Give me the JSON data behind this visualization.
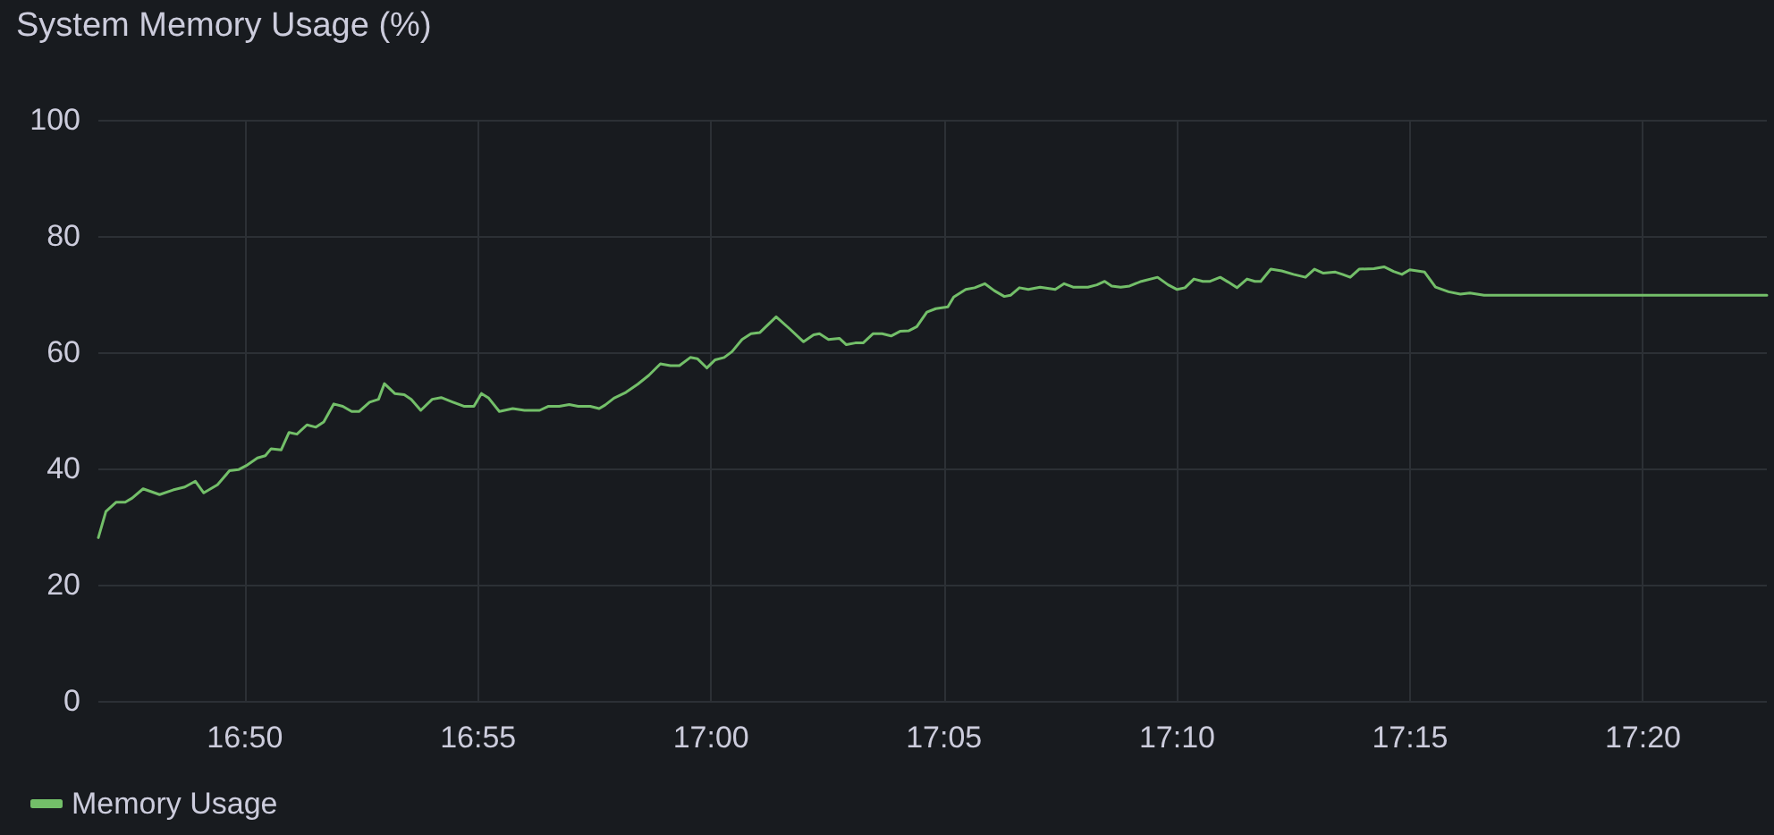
{
  "chart_data": {
    "type": "line",
    "title": "System Memory Usage (%)",
    "x": [
      16.7809,
      16.7836,
      16.7873,
      16.7905,
      16.793,
      16.7969,
      16.8028,
      16.8076,
      16.8118,
      16.8156,
      16.8186,
      16.8235,
      16.8278,
      16.831,
      16.8342,
      16.8378,
      16.8406,
      16.8427,
      16.8463,
      16.8491,
      16.8519,
      16.8555,
      16.8587,
      16.8615,
      16.8651,
      16.8683,
      16.8715,
      16.8741,
      16.8779,
      16.8811,
      16.8832,
      16.8869,
      16.8903,
      16.8928,
      16.8962,
      16.9003,
      16.9035,
      16.9077,
      16.9116,
      16.9152,
      16.9179,
      16.9205,
      16.9243,
      16.9291,
      16.9333,
      16.9387,
      16.9419,
      16.9457,
      16.9493,
      16.9525,
      16.9568,
      16.96,
      16.9621,
      16.9653,
      16.9696,
      16.9738,
      16.9777,
      16.9819,
      16.9855,
      16.9887,
      16.9926,
      16.9951,
      16.9985,
      17.0015,
      17.0047,
      17.0075,
      17.0111,
      17.0143,
      17.0175,
      17.0233,
      17.0282,
      17.0331,
      17.0367,
      17.0388,
      17.042,
      17.0459,
      17.0484,
      17.0516,
      17.0544,
      17.058,
      17.0612,
      17.0644,
      17.0676,
      17.0708,
      17.0736,
      17.0772,
      17.0804,
      17.0847,
      17.0868,
      17.0911,
      17.0943,
      17.0979,
      17.1013,
      17.1049,
      17.1071,
      17.1103,
      17.1135,
      17.1177,
      17.1231,
      17.1263,
      17.1295,
      17.1348,
      17.138,
      17.1408,
      17.1433,
      17.1465,
      17.1497,
      17.1539,
      17.1597,
      17.1635,
      17.1667,
      17.1695,
      17.1727,
      17.1759,
      17.1785,
      17.1821,
      17.1849,
      17.1881,
      17.1917,
      17.1945,
      17.1966,
      17.2002,
      17.2041,
      17.2083,
      17.2126,
      17.2158,
      17.219,
      17.2233,
      17.2258,
      17.2286,
      17.2318,
      17.2371,
      17.2407,
      17.2441,
      17.2471,
      17.2499,
      17.2552,
      17.2591,
      17.2638,
      17.268,
      17.2714,
      17.2765,
      17.3776
    ],
    "series": [
      {
        "name": "Memory Usage",
        "color": "#73bf69",
        "values": [
          28.1,
          32.6,
          34.2,
          34.2,
          34.9,
          36.5,
          35.5,
          36.3,
          36.8,
          37.8,
          35.8,
          37.2,
          39.6,
          39.8,
          40.6,
          41.8,
          42.2,
          43.4,
          43.2,
          46.2,
          45.9,
          47.5,
          47.1,
          48.0,
          51.1,
          50.7,
          49.8,
          49.8,
          51.4,
          51.9,
          54.6,
          52.9,
          52.7,
          51.9,
          50.0,
          51.9,
          52.2,
          51.4,
          50.7,
          50.7,
          52.9,
          52.1,
          49.8,
          50.3,
          50.0,
          50.0,
          50.7,
          50.7,
          51.0,
          50.7,
          50.7,
          50.3,
          50.9,
          52.1,
          53.1,
          54.5,
          56.0,
          58.0,
          57.7,
          57.7,
          59.1,
          58.9,
          57.3,
          58.7,
          59.1,
          60.1,
          62.2,
          63.2,
          63.4,
          66.1,
          64.0,
          61.8,
          63.0,
          63.2,
          62.2,
          62.4,
          61.3,
          61.6,
          61.6,
          63.2,
          63.2,
          62.8,
          63.6,
          63.7,
          64.4,
          66.9,
          67.5,
          67.8,
          69.5,
          70.8,
          71.1,
          71.8,
          70.6,
          69.6,
          69.8,
          71.1,
          70.8,
          71.2,
          70.8,
          71.8,
          71.2,
          71.2,
          71.6,
          72.2,
          71.4,
          71.2,
          71.4,
          72.2,
          72.9,
          71.6,
          70.8,
          71.1,
          72.6,
          72.2,
          72.2,
          72.9,
          72.1,
          71.1,
          72.6,
          72.2,
          72.2,
          74.3,
          74.0,
          73.4,
          72.9,
          74.3,
          73.6,
          73.8,
          73.4,
          72.9,
          74.3,
          74.4,
          74.7,
          73.9,
          73.4,
          74.2,
          73.8,
          71.2,
          70.4,
          70.0,
          70.2,
          69.8,
          69.8
        ]
      }
    ],
    "xlim": [
      16.7809,
      17.3776
    ],
    "xticks": [
      {
        "value": 16.8333,
        "label": "16:50"
      },
      {
        "value": 16.9167,
        "label": "16:55"
      },
      {
        "value": 17,
        "label": "17:00"
      },
      {
        "value": 17.0833,
        "label": "17:05"
      },
      {
        "value": 17.1667,
        "label": "17:10"
      },
      {
        "value": 17.25,
        "label": "17:15"
      },
      {
        "value": 17.3333,
        "label": "17:20"
      }
    ],
    "ylim": [
      0,
      100
    ],
    "yticks": [
      0,
      20,
      40,
      60,
      80,
      100
    ],
    "grid": true,
    "legend": "bottom left",
    "marker": "none",
    "line_style": "solid"
  }
}
